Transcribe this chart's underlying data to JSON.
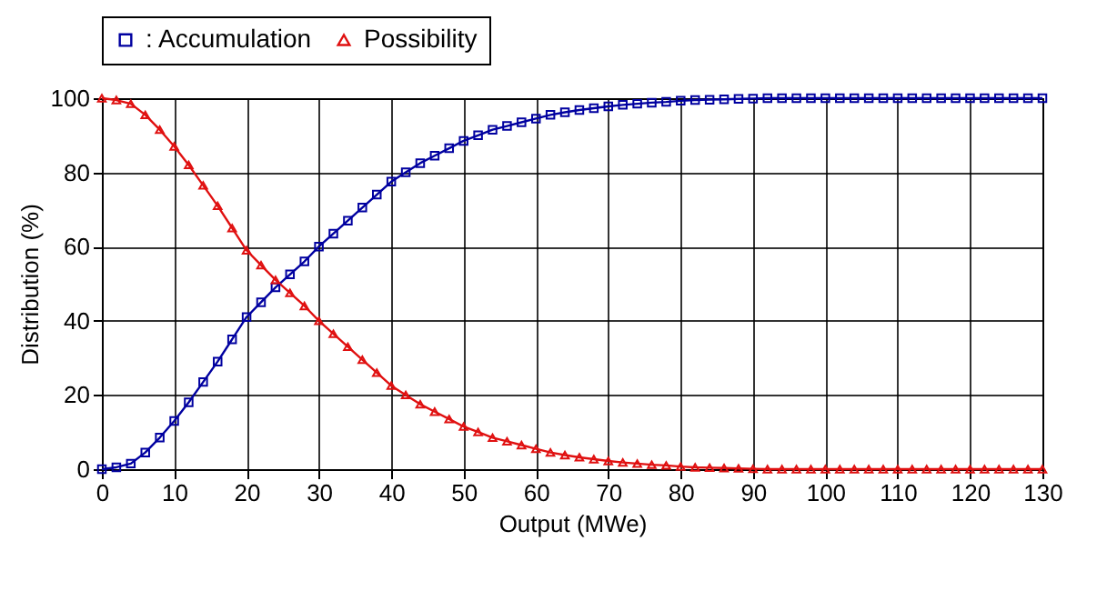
{
  "chart_data": {
    "type": "line",
    "xlabel": "Output (MWe)",
    "ylabel": "Distribution (%)",
    "x": [
      0,
      2,
      4,
      6,
      8,
      10,
      12,
      14,
      16,
      18,
      20,
      22,
      24,
      26,
      28,
      30,
      32,
      34,
      36,
      38,
      40,
      42,
      44,
      46,
      48,
      50,
      52,
      54,
      56,
      58,
      60,
      62,
      64,
      66,
      68,
      70,
      72,
      74,
      76,
      78,
      80,
      82,
      84,
      86,
      88,
      90,
      92,
      94,
      96,
      98,
      100,
      102,
      104,
      106,
      108,
      110,
      112,
      114,
      116,
      118,
      120,
      122,
      124,
      126,
      128,
      130
    ],
    "series": [
      {
        "name": ": Accumulation",
        "color": "#0000a0",
        "marker": "square",
        "values": [
          0,
          0.5,
          1.5,
          4.5,
          8.5,
          13,
          18,
          23.5,
          29,
          35,
          41,
          45,
          49,
          52.5,
          56,
          60,
          63.5,
          67,
          70.5,
          74,
          77.5,
          80,
          82.5,
          84.5,
          86.5,
          88.5,
          90,
          91.5,
          92.5,
          93.5,
          94.5,
          95.5,
          96.2,
          96.8,
          97.3,
          97.8,
          98.2,
          98.5,
          98.8,
          99,
          99.3,
          99.5,
          99.6,
          99.7,
          99.8,
          99.9,
          100,
          100,
          100,
          100,
          100,
          100,
          100,
          100,
          100,
          100,
          100,
          100,
          100,
          100,
          100,
          100,
          100,
          100,
          100,
          100
        ]
      },
      {
        "name": "Possibility",
        "color": "#e01010",
        "marker": "triangle",
        "values": [
          100,
          99.5,
          98.5,
          95.5,
          91.5,
          87,
          82,
          76.5,
          71,
          65,
          59,
          55,
          51,
          47.5,
          44,
          40,
          36.5,
          33,
          29.5,
          26,
          22.5,
          20,
          17.5,
          15.5,
          13.5,
          11.5,
          10,
          8.5,
          7.5,
          6.5,
          5.5,
          4.5,
          3.8,
          3.2,
          2.7,
          2.2,
          1.8,
          1.5,
          1.2,
          1,
          0.7,
          0.5,
          0.4,
          0.3,
          0.2,
          0.1,
          0,
          0,
          0,
          0,
          0,
          0,
          0,
          0,
          0,
          0,
          0,
          0,
          0,
          0,
          0,
          0,
          0,
          0,
          0,
          0
        ]
      }
    ],
    "xlim": [
      0,
      130
    ],
    "xticks": [
      0,
      10,
      20,
      30,
      40,
      50,
      60,
      70,
      80,
      90,
      100,
      110,
      120,
      130
    ],
    "ylim": [
      0,
      100
    ],
    "yticks": [
      0,
      20,
      40,
      60,
      80,
      100
    ],
    "grid": true,
    "legend": "top"
  }
}
